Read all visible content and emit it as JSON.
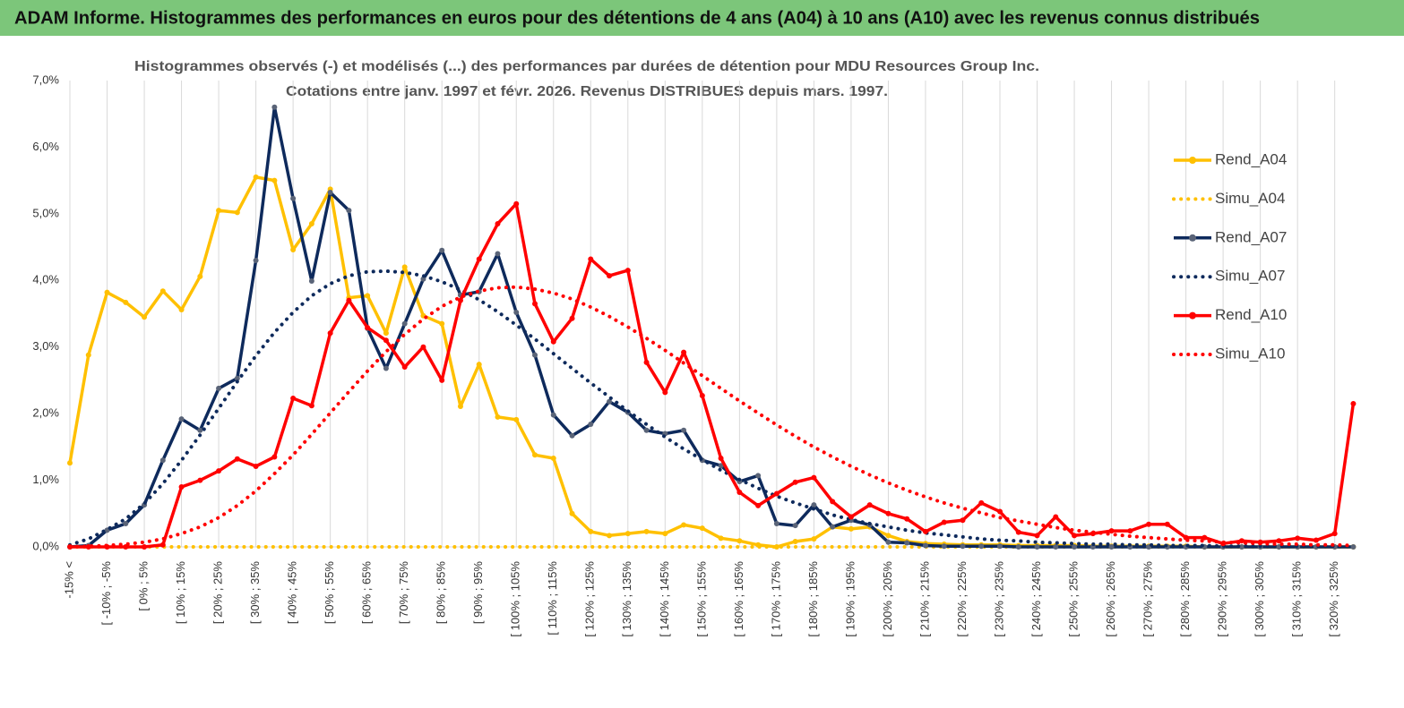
{
  "header": {
    "title": "ADAM Informe. Histogrammes des performances en euros pour des détentions de 4 ans (A04) à 10 ans (A10) avec les revenus connus distribués"
  },
  "chart_data": {
    "type": "line",
    "title": "Histogrammes observés (-) et modélisés (...) des performances par durées de détention pour MDU Resources Group Inc.",
    "subtitle": "Cotations entre janv. 1997 et févr. 2026. Revenus DISTRIBUES depuis mars. 1997.",
    "categories": [
      "-15% <",
      null,
      "[ -10% ; -5%",
      null,
      "[ 0% ; 5%",
      null,
      "[ 10% ; 15%",
      null,
      "[ 20% ; 25%",
      null,
      "[ 30% ; 35%",
      null,
      "[ 40% ; 45%",
      null,
      "[ 50% ; 55%",
      null,
      "[ 60% ; 65%",
      null,
      "[ 70% ; 75%",
      null,
      "[ 80% ; 85%",
      null,
      "[ 90% ; 95%",
      null,
      "[ 100% ; 105%",
      null,
      "[ 110% ; 115%",
      null,
      "[ 120% ; 125%",
      null,
      "[ 130% ; 135%",
      null,
      "[ 140% ; 145%",
      null,
      "[ 150% ; 155%",
      null,
      "[ 160% ; 165%",
      null,
      "[ 170% ; 175%",
      null,
      "[ 180% ; 185%",
      null,
      "[ 190% ; 195%",
      null,
      "[ 200% ; 205%",
      null,
      "[ 210% ; 215%",
      null,
      "[ 220% ; 225%",
      null,
      "[ 230% ; 235%",
      null,
      "[ 240% ; 245%",
      null,
      "[ 250% ; 255%",
      null,
      "[ 260% ; 265%",
      null,
      "[ 270% ; 275%",
      null,
      "[ 280% ; 285%",
      null,
      "[ 290% ; 295%",
      null,
      "[ 300% ; 305%",
      null,
      "[ 310% ; 315%",
      null,
      "[ 320% ; 325%",
      null
    ],
    "ylim": [
      0,
      7
    ],
    "yticks": [
      {
        "value": 0,
        "label": "0,0%"
      },
      {
        "value": 1,
        "label": "1,0%"
      },
      {
        "value": 2,
        "label": "2,0%"
      },
      {
        "value": 3,
        "label": "3,0%"
      },
      {
        "value": 4,
        "label": "4,0%"
      },
      {
        "value": 5,
        "label": "5,0%"
      },
      {
        "value": 6,
        "label": "6,0%"
      },
      {
        "value": 7,
        "label": "7,0%"
      }
    ],
    "grid": "x",
    "legend": "right",
    "series": [
      {
        "name": "Rend_A04",
        "color": "#ffc000",
        "style": "solid",
        "markers": true,
        "values": [
          1.26,
          2.88,
          3.82,
          3.67,
          3.45,
          3.84,
          3.56,
          4.06,
          5.05,
          5.02,
          5.55,
          5.5,
          4.46,
          4.85,
          5.37,
          3.74,
          3.77,
          3.21,
          4.2,
          3.47,
          3.35,
          2.11,
          2.74,
          1.95,
          1.91,
          1.38,
          1.33,
          0.5,
          0.23,
          0.17,
          0.2,
          0.23,
          0.2,
          0.33,
          0.28,
          0.13,
          0.09,
          0.03,
          0,
          0.08,
          0.12,
          0.3,
          0.27,
          0.3,
          0.17,
          0.08,
          0.05,
          0.04,
          0.03,
          0.03,
          0.03,
          0.02,
          0.02,
          0.02,
          0.02,
          0.01,
          0.01,
          0.01,
          0.01,
          0.01,
          0.01,
          0,
          0,
          0,
          0,
          0,
          0,
          0,
          0,
          0
        ]
      },
      {
        "name": "Simu_A04",
        "color": "#ffc000",
        "style": "dotted",
        "markers": false,
        "values": [
          0,
          0,
          0,
          0,
          0,
          0,
          0,
          0,
          0,
          0,
          0,
          0,
          0,
          0,
          0,
          0,
          0,
          0,
          0,
          0,
          0,
          0,
          0,
          0,
          0,
          0,
          0,
          0,
          0,
          0,
          0,
          0,
          0,
          0,
          0,
          0,
          0,
          0,
          0,
          0,
          0,
          0,
          0,
          0,
          0,
          0,
          0,
          0,
          0,
          0,
          0,
          0,
          0,
          0,
          0,
          0,
          0,
          0,
          0,
          0,
          0,
          0,
          0,
          0,
          0,
          0,
          0,
          0,
          0,
          0
        ]
      },
      {
        "name": "Rend_A07",
        "color": "#0e2a5c",
        "style": "solid",
        "markers": true,
        "values": [
          0,
          0.02,
          0.25,
          0.35,
          0.63,
          1.3,
          1.92,
          1.75,
          2.38,
          2.53,
          4.3,
          6.6,
          5.23,
          3.99,
          5.32,
          5.05,
          3.28,
          2.68,
          3.35,
          4.02,
          4.45,
          3.78,
          3.83,
          4.4,
          3.52,
          2.88,
          1.98,
          1.67,
          1.84,
          2.18,
          2.02,
          1.75,
          1.7,
          1.75,
          1.3,
          1.22,
          0.98,
          1.07,
          0.35,
          0.32,
          0.63,
          0.3,
          0.4,
          0.33,
          0.07,
          0.06,
          0.02,
          0.01,
          0.01,
          0.01,
          0.01,
          0,
          0,
          0,
          0,
          0,
          0,
          0,
          0,
          0,
          0,
          0,
          0,
          0,
          0,
          0,
          0,
          0,
          0,
          0
        ]
      },
      {
        "name": "Simu_A07",
        "color": "#0e2a5c",
        "style": "dotted",
        "markers": false,
        "values": [
          0.03,
          0.12,
          0.26,
          0.42,
          0.65,
          0.95,
          1.3,
          1.68,
          2.08,
          2.48,
          2.87,
          3.22,
          3.52,
          3.77,
          3.95,
          4.07,
          4.13,
          4.14,
          4.12,
          4.07,
          3.98,
          3.86,
          3.71,
          3.53,
          3.33,
          3.12,
          2.9,
          2.68,
          2.46,
          2.25,
          2.04,
          1.84,
          1.65,
          1.47,
          1.31,
          1.15,
          1.01,
          0.88,
          0.76,
          0.66,
          0.57,
          0.48,
          0.41,
          0.35,
          0.3,
          0.25,
          0.21,
          0.18,
          0.15,
          0.12,
          0.1,
          0.09,
          0.07,
          0.06,
          0.05,
          0.04,
          0.04,
          0.03,
          0.03,
          0.02,
          0.02,
          0.02,
          0.01,
          0.01,
          0.01,
          0.01,
          0.01,
          0.01,
          0.01,
          0.01
        ]
      },
      {
        "name": "Rend_A10",
        "color": "#ff0000",
        "style": "solid",
        "markers": true,
        "values": [
          0,
          0,
          0,
          0,
          0,
          0.03,
          0.9,
          1,
          1.14,
          1.32,
          1.21,
          1.35,
          2.23,
          2.12,
          3.21,
          3.7,
          3.29,
          3.1,
          2.7,
          3,
          2.5,
          3.7,
          4.32,
          4.85,
          5.15,
          3.65,
          3.08,
          3.43,
          4.32,
          4.07,
          4.15,
          2.77,
          2.32,
          2.92,
          2.27,
          1.33,
          0.82,
          0.62,
          0.8,
          0.97,
          1.04,
          0.68,
          0.45,
          0.63,
          0.5,
          0.42,
          0.23,
          0.37,
          0.4,
          0.66,
          0.53,
          0.22,
          0.17,
          0.45,
          0.17,
          0.2,
          0.24,
          0.24,
          0.34,
          0.34,
          0.14,
          0.14,
          0.05,
          0.09,
          0.07,
          0.09,
          0.13,
          0.1,
          0.2,
          2.15
        ]
      },
      {
        "name": "Simu_A10",
        "color": "#ff0000",
        "style": "dotted",
        "markers": false,
        "values": [
          0,
          0.01,
          0.02,
          0.04,
          0.07,
          0.12,
          0.2,
          0.3,
          0.44,
          0.62,
          0.84,
          1.1,
          1.38,
          1.69,
          2.01,
          2.33,
          2.64,
          2.93,
          3.19,
          3.42,
          3.61,
          3.75,
          3.84,
          3.89,
          3.9,
          3.87,
          3.81,
          3.72,
          3.6,
          3.46,
          3.3,
          3.13,
          2.95,
          2.76,
          2.57,
          2.38,
          2.19,
          2.01,
          1.83,
          1.66,
          1.5,
          1.35,
          1.21,
          1.08,
          0.96,
          0.85,
          0.75,
          0.66,
          0.58,
          0.51,
          0.44,
          0.39,
          0.34,
          0.29,
          0.25,
          0.22,
          0.19,
          0.16,
          0.14,
          0.12,
          0.1,
          0.09,
          0.07,
          0.06,
          0.05,
          0.04,
          0.04,
          0.03,
          0.03,
          0.02
        ]
      }
    ]
  }
}
